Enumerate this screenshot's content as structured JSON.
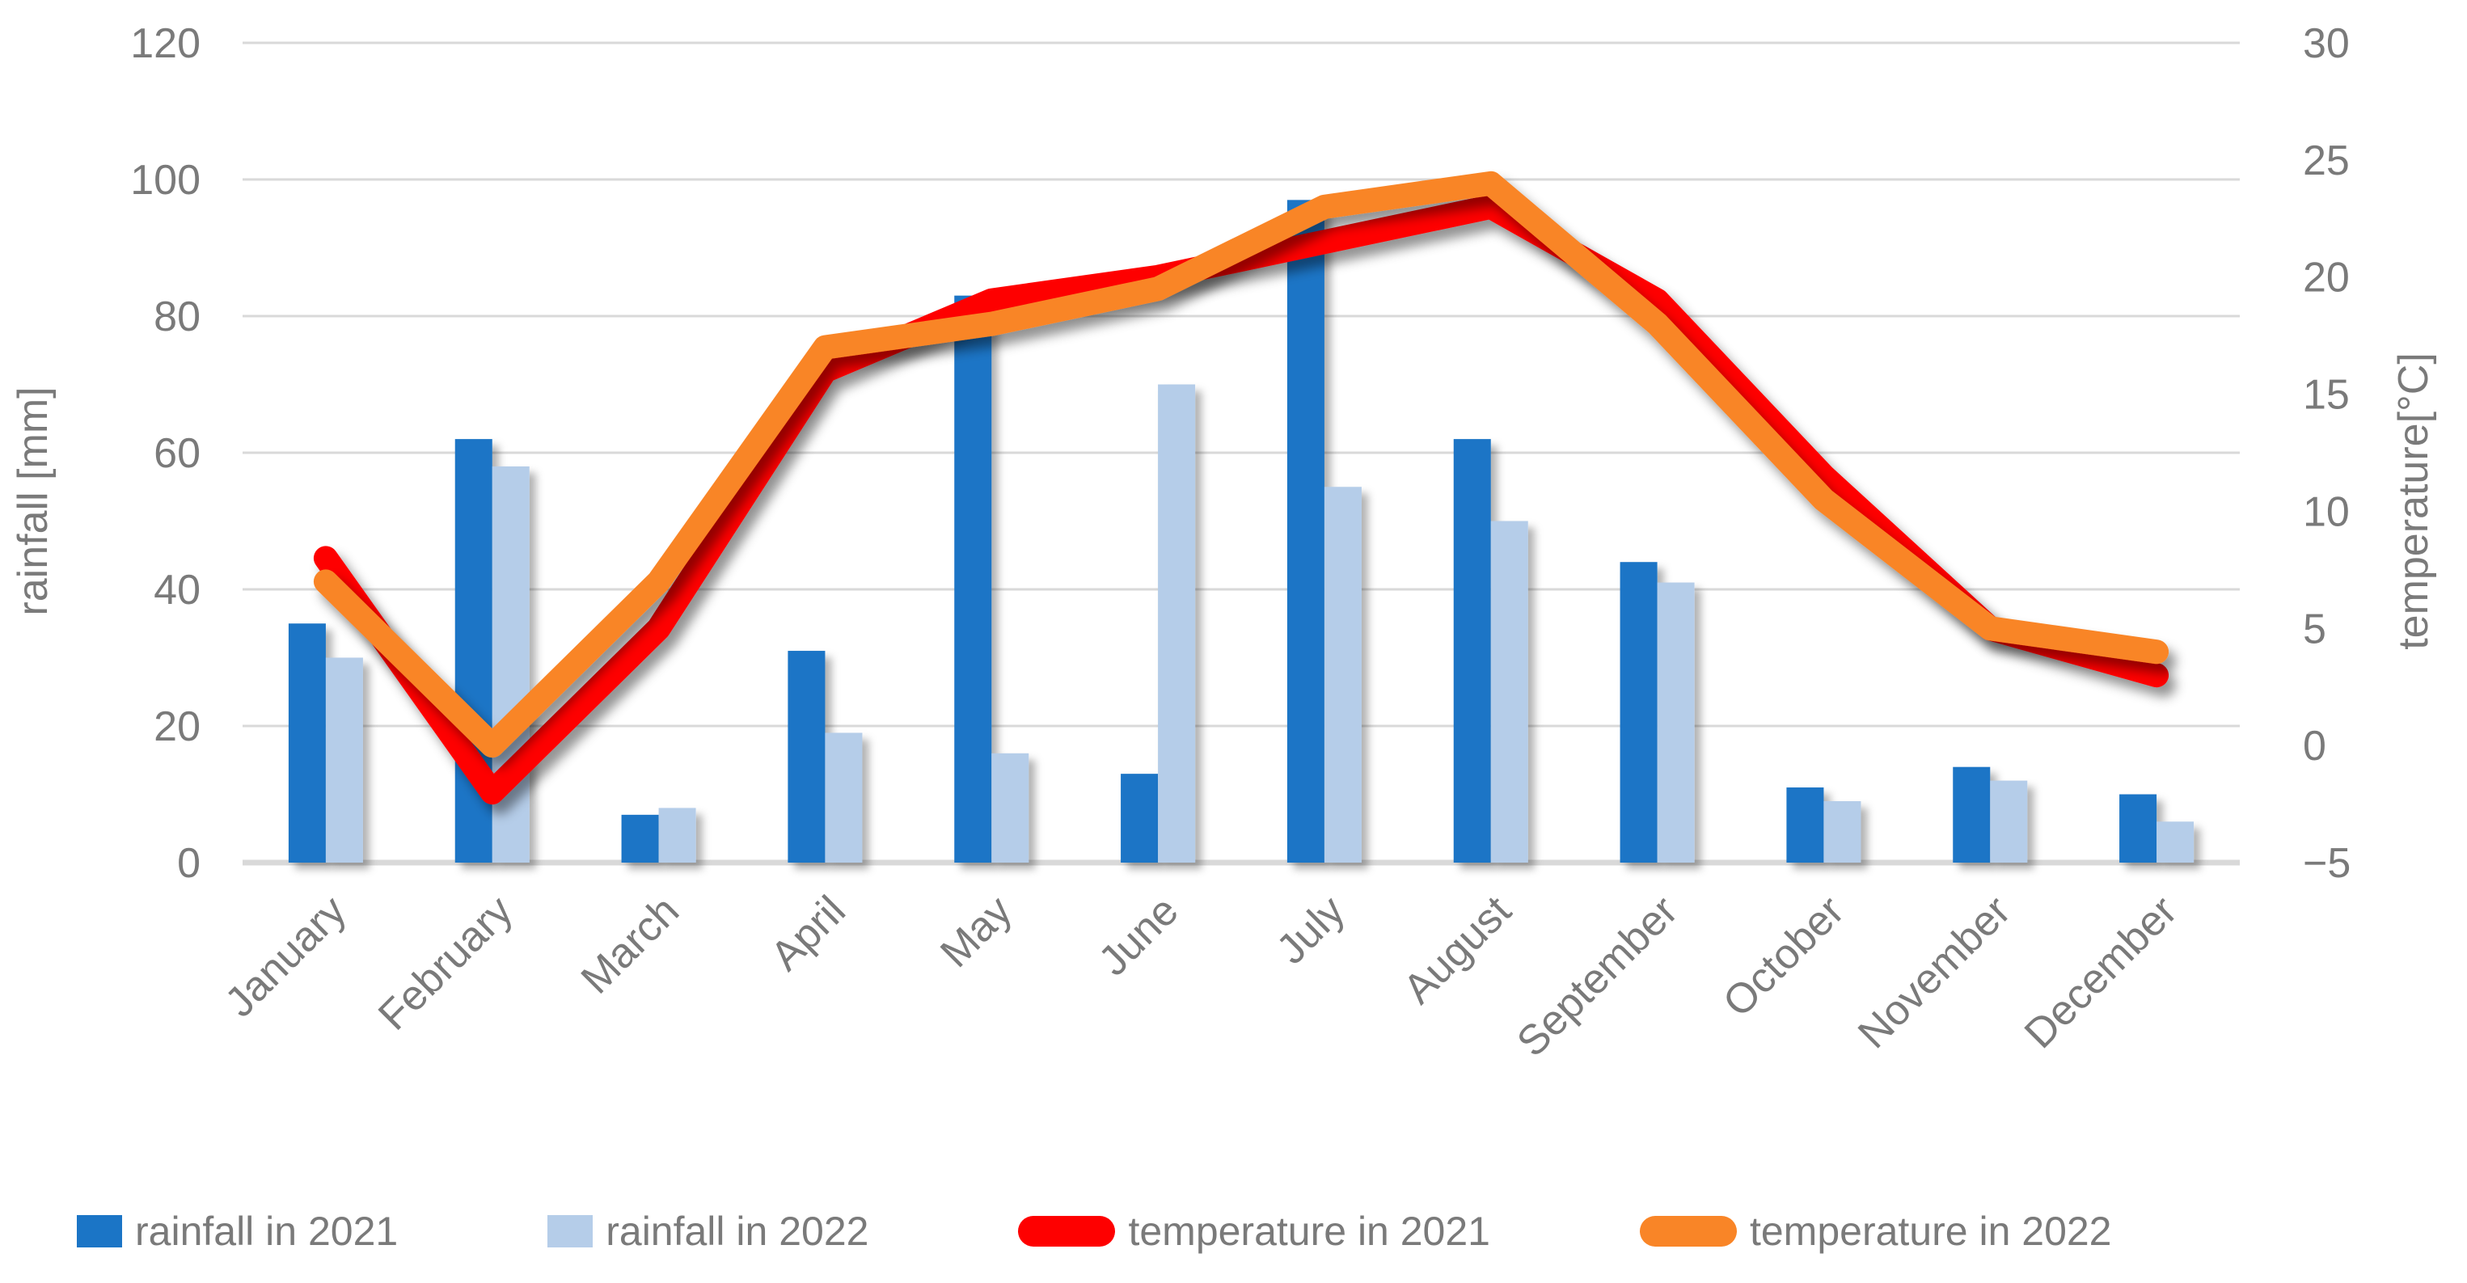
{
  "chart_data": {
    "type": "combo",
    "categories": [
      "January",
      "February",
      "March",
      "April",
      "May",
      "June",
      "July",
      "August",
      "September",
      "October",
      "November",
      "December"
    ],
    "series": [
      {
        "name": "rainfall in 2021",
        "type": "bar",
        "axis": "left",
        "color": "#1B75C6",
        "values": [
          35,
          62,
          7,
          31,
          83,
          13,
          97,
          62,
          44,
          11,
          14,
          10
        ]
      },
      {
        "name": "rainfall in 2022",
        "type": "bar",
        "axis": "left",
        "color": "#B5CDE9",
        "values": [
          30,
          58,
          8,
          19,
          16,
          70,
          55,
          50,
          41,
          9,
          12,
          6
        ]
      },
      {
        "name": "temperature in 2021",
        "type": "line",
        "axis": "right",
        "color": "#FE0000",
        "values": [
          8,
          -2,
          5,
          16,
          19,
          20,
          21.5,
          23,
          19,
          11.5,
          5,
          3
        ]
      },
      {
        "name": "temperature in 2022",
        "type": "line",
        "axis": "right",
        "color": "#F98527",
        "values": [
          7,
          0,
          7,
          17,
          18,
          19.5,
          23,
          24,
          18,
          10.5,
          5,
          4
        ]
      }
    ],
    "y_left": {
      "title": "rainfall [mm]",
      "min": 0,
      "max": 120,
      "step": 20,
      "tick_labels": [
        "0",
        "20",
        "40",
        "60",
        "80",
        "100",
        "120"
      ]
    },
    "y_right": {
      "title": "temperature[°C]",
      "min": -5,
      "max": 30,
      "step": 5,
      "tick_labels": [
        "−5",
        "0",
        "5",
        "10",
        "15",
        "20",
        "25",
        "30"
      ]
    },
    "grid": true,
    "legend_position": "bottom",
    "colors": {
      "grid": "#D9D9D9",
      "axis_line": "#D3D3D3",
      "axis_text": "#7A7A7A",
      "background": "#FFFFFF"
    }
  }
}
